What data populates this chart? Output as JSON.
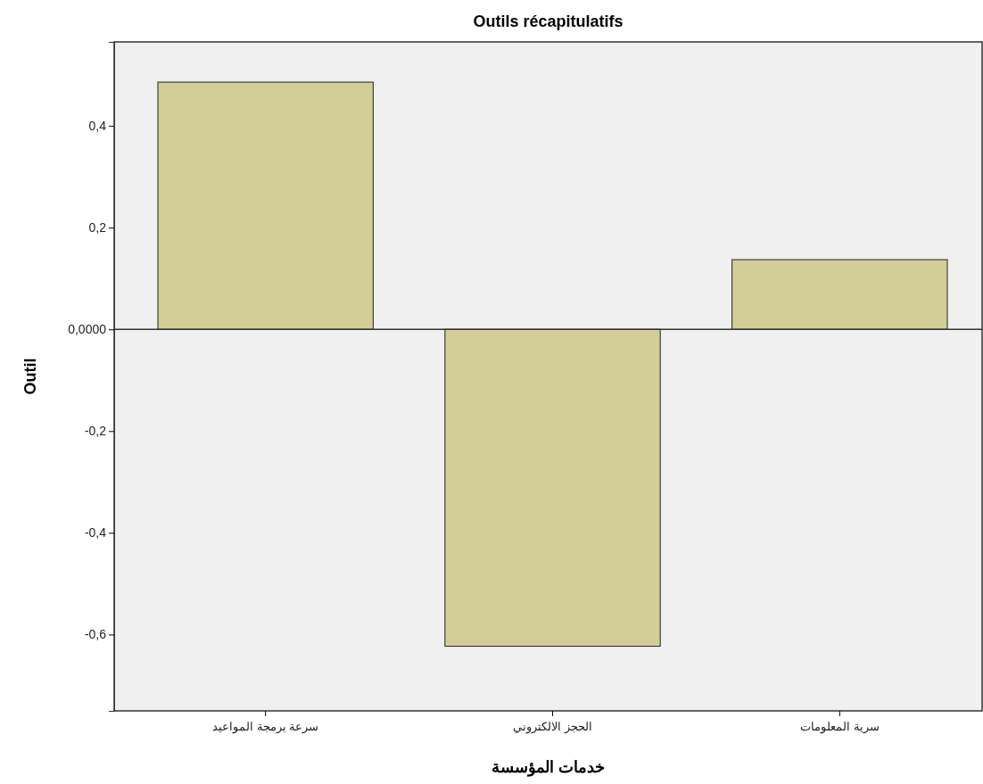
{
  "chart_data": {
    "type": "bar",
    "title": "Outils récapitulatifs",
    "xlabel": "خدمات المؤسسة",
    "ylabel": "Outil",
    "categories": [
      "سرعة برمجة المواعيد",
      "الحجز الالكتروني",
      "سرية المعلومات"
    ],
    "values": [
      0.486,
      -0.623,
      0.137
    ],
    "color": "#d3ce97",
    "ylim": [
      -0.75,
      0.565
    ],
    "yticks": [
      {
        "value": -0.6,
        "label": "-0,6"
      },
      {
        "value": -0.4,
        "label": "-0,4"
      },
      {
        "value": -0.2,
        "label": "-0,2"
      },
      {
        "value": 0,
        "label": "0,0000"
      },
      {
        "value": 0.2,
        "label": "0,2"
      },
      {
        "value": 0.4,
        "label": "0,4"
      }
    ],
    "ref_lines": [
      {
        "axis": "y",
        "value": 0,
        "color": "#333333"
      }
    ]
  }
}
